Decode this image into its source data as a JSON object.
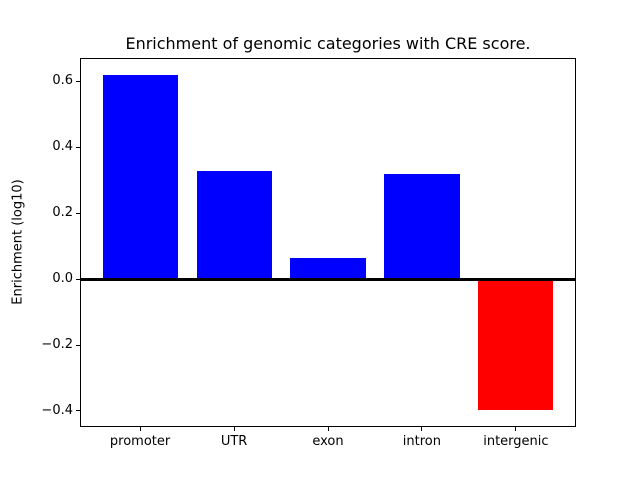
{
  "window": {
    "background_color": "#ffffff"
  },
  "chart_data": {
    "type": "bar",
    "title": "Enrichment of genomic categories with CRE score.",
    "xlabel": "",
    "ylabel": "Enrichment (log10)",
    "categories": [
      "promoter",
      "UTR",
      "exon",
      "intron",
      "intergenic"
    ],
    "values": [
      0.621,
      0.329,
      0.064,
      0.318,
      -0.396
    ],
    "bar_colors": [
      "#0000ff",
      "#0000ff",
      "#0000ff",
      "#0000ff",
      "#ff0000"
    ],
    "positive_color": "#0000ff",
    "negative_color": "#ff0000",
    "bar_width": 0.8,
    "xlim": [
      -0.64,
      4.64
    ],
    "ylim": [
      -0.449,
      0.671
    ],
    "ytick_values": [
      0.6,
      0.4,
      0.2,
      0.0,
      -0.2,
      -0.4
    ],
    "ytick_labels": [
      "0.6",
      "0.4",
      "0.2",
      "0.0",
      "−0.2",
      "−0.4"
    ],
    "zero_line": true,
    "grid": false,
    "legend": false,
    "axis_color": "#000000",
    "text_color": "#000000"
  }
}
